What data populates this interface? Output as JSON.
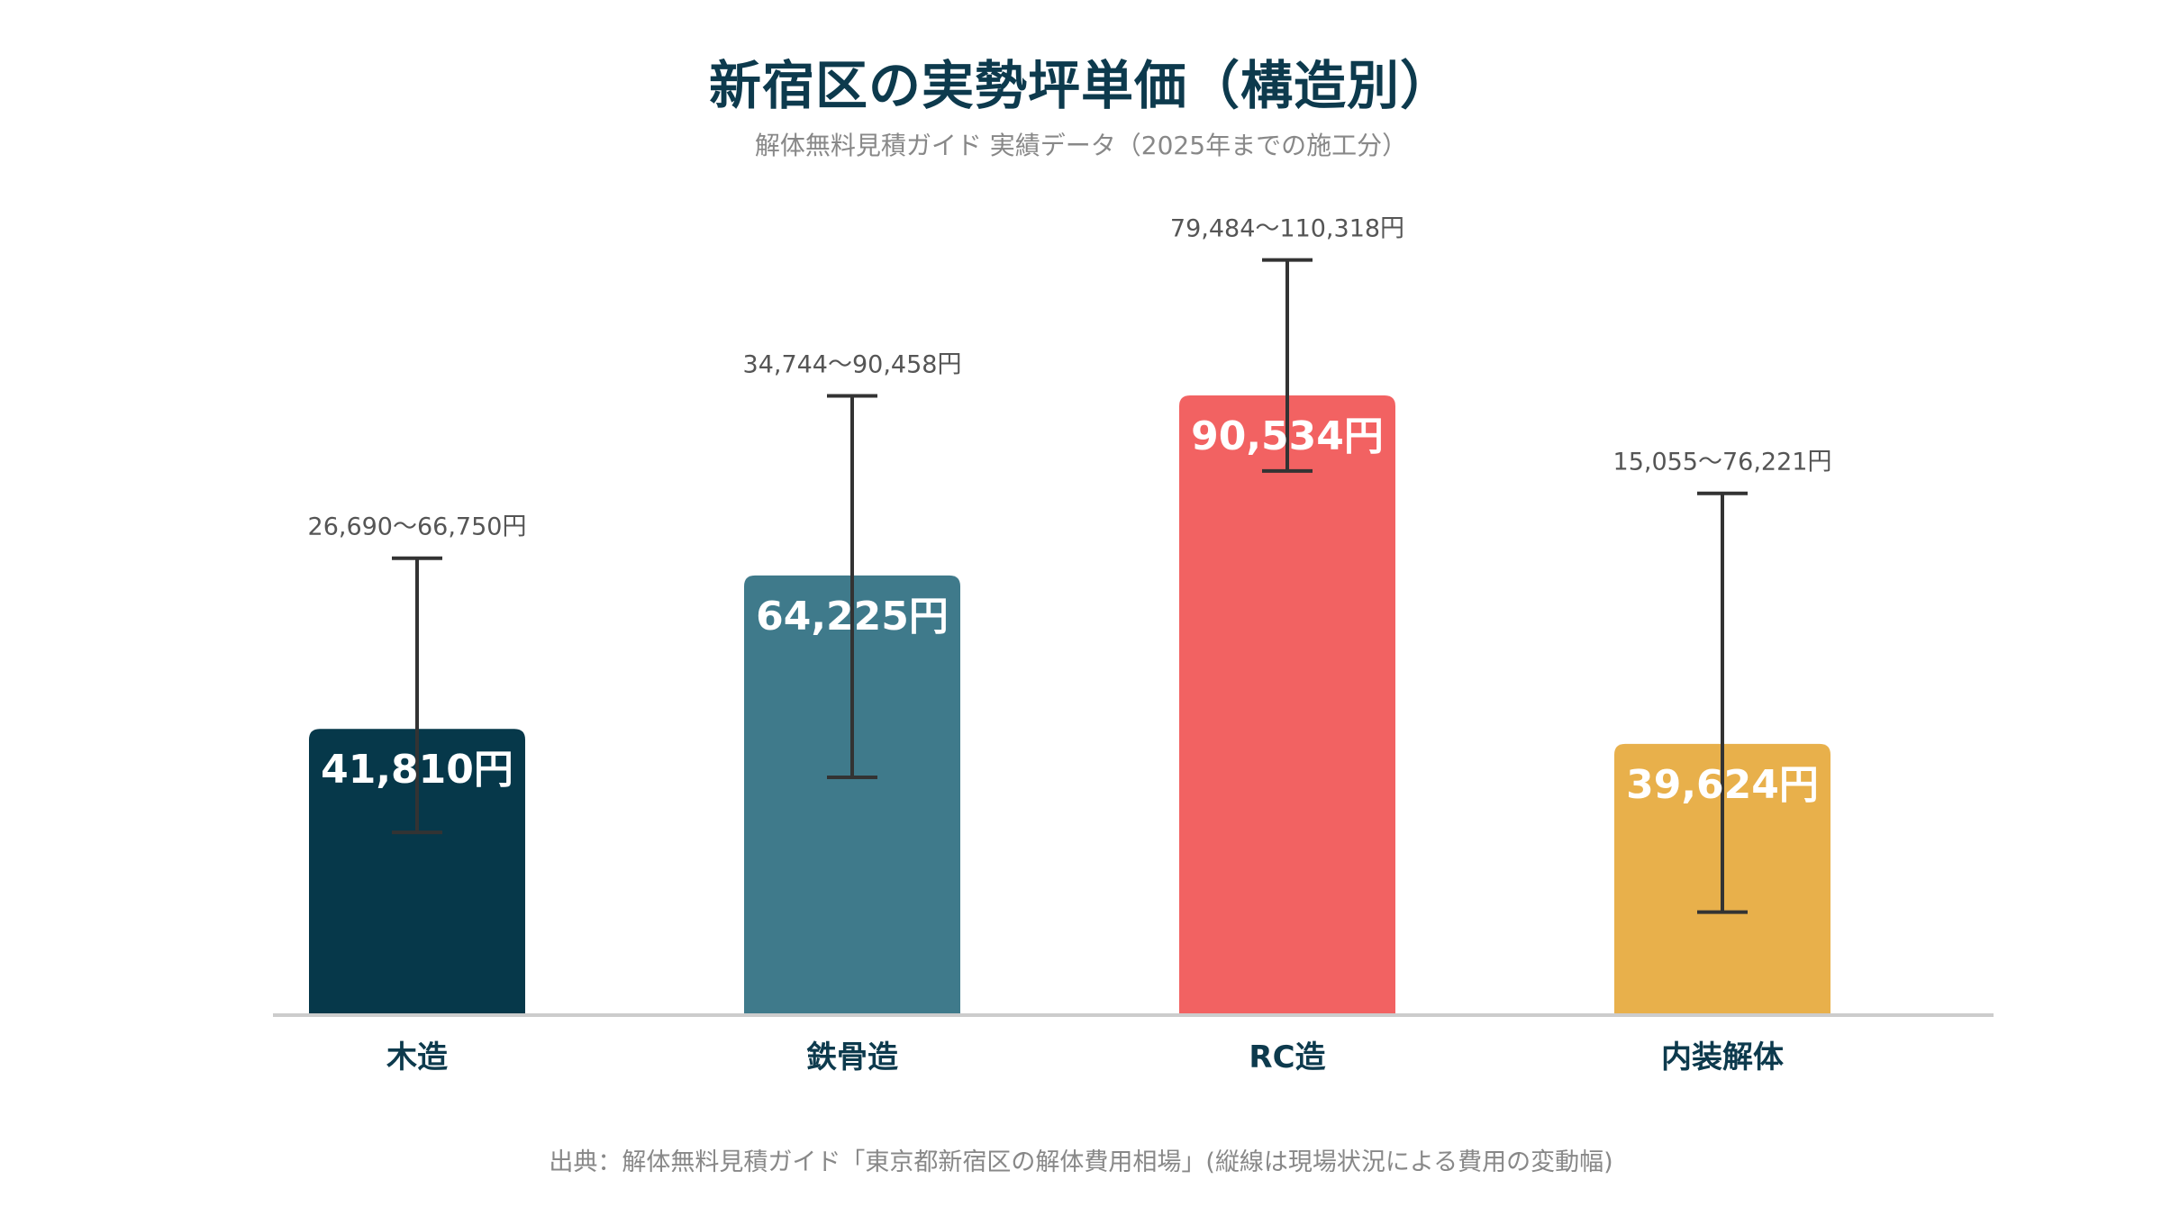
{
  "chart_data": {
    "type": "bar",
    "title": "新宿区の実勢坪単価（構造別）",
    "subtitle": "解体無料見積ガイド 実績データ（2025年までの施工分）",
    "source": "出典：解体無料見積ガイド「東京都新宿区の解体費用相場」(縦線は現場状況による費用の変動幅)",
    "categories": [
      "木造",
      "鉄骨造",
      "RC造",
      "内装解体"
    ],
    "values": [
      41810,
      64225,
      90534,
      39624
    ],
    "value_labels": [
      "41,810円",
      "64,225円",
      "90,534円",
      "39,624円"
    ],
    "ranges": [
      [
        26690,
        66750
      ],
      [
        34744,
        90458
      ],
      [
        79484,
        110318
      ],
      [
        15055,
        76221
      ]
    ],
    "range_labels": [
      "26,690〜66,750円",
      "34,744〜90,458円",
      "79,484〜110,318円",
      "15,055〜76,221円"
    ],
    "colors": [
      "#06384a",
      "#3f7a8b",
      "#f26262",
      "#e8b04b"
    ],
    "ylim": [
      0,
      120000
    ],
    "grid": false,
    "legend": "none"
  }
}
